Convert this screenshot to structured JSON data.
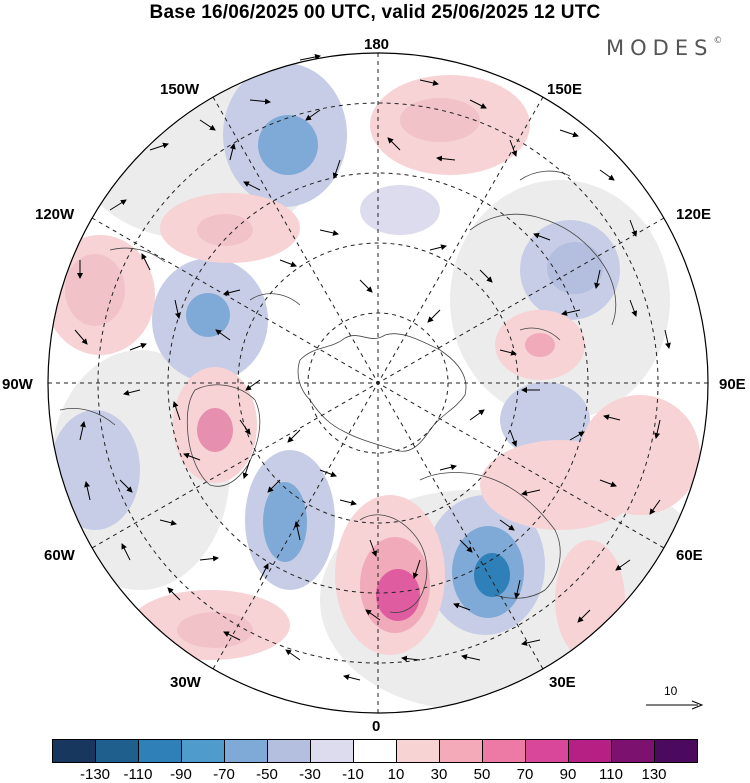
{
  "title": "Base 16/06/2025 00 UTC, valid 25/06/2025 12 UTC",
  "brand": "MODES",
  "brand_mark": "©",
  "longitude_labels": {
    "n180": "180",
    "n150w": "150W",
    "n150e": "150E",
    "n120w": "120W",
    "n120e": "120E",
    "n90w": "90W",
    "n90e": "90E",
    "n60w": "60W",
    "n60e": "60E",
    "n30w": "30W",
    "n30e": "30E",
    "n0": "0"
  },
  "reference_vector": {
    "label": "10"
  },
  "colorbar": {
    "ticks": [
      "-130",
      "-110",
      "-90",
      "-70",
      "-50",
      "-30",
      "-10",
      "10",
      "30",
      "50",
      "70",
      "90",
      "110",
      "130"
    ],
    "colors": [
      "#17375e",
      "#1f5f8e",
      "#2f7fb9",
      "#4f9bcb",
      "#7fa9d6",
      "#b4bfdf",
      "#dcdcee",
      "#ffffff",
      "#f8d3d3",
      "#f4aab8",
      "#ed7aa5",
      "#d9479a",
      "#b61f84",
      "#7d116f",
      "#4c0a5e"
    ]
  },
  "anomaly_colors": {
    "negative_strong": "#2f7fb9",
    "negative_mid": "#7fa9d6",
    "negative_weak": "#c7cde6",
    "positive_weak": "#f7d3d6",
    "positive_mid": "#f1aab9",
    "positive_strong": "#e05ca1",
    "land_grey": "#ececec"
  }
}
